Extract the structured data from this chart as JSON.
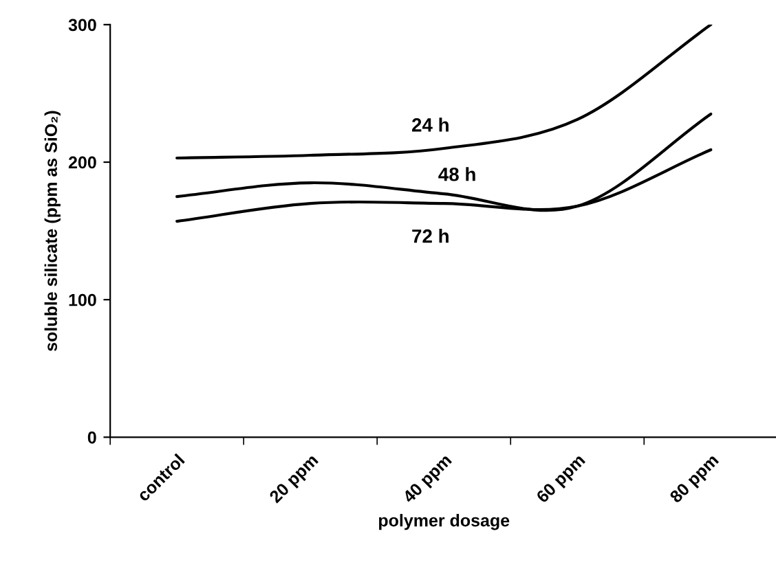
{
  "chart_data": {
    "type": "line",
    "xlabel": "polymer dosage",
    "ylabel": "soluble silicate (ppm as SiO₂)",
    "categories": [
      "control",
      "20 ppm",
      "40 ppm",
      "60 ppm",
      "80 ppm"
    ],
    "series": [
      {
        "name": "24 h",
        "color": "#000000",
        "values": [
          203,
          205,
          210,
          231,
          300
        ]
      },
      {
        "name": "48 h",
        "color": "#000000",
        "values": [
          175,
          185,
          177,
          168,
          235
        ]
      },
      {
        "name": "72 h",
        "color": "#000000",
        "values": [
          157,
          170,
          170,
          168,
          209
        ]
      }
    ],
    "ylim": [
      0,
      300
    ],
    "yticks": [
      0,
      100,
      200,
      300
    ],
    "grid": false,
    "legend": false,
    "marker": "none",
    "line_style": "solid"
  }
}
